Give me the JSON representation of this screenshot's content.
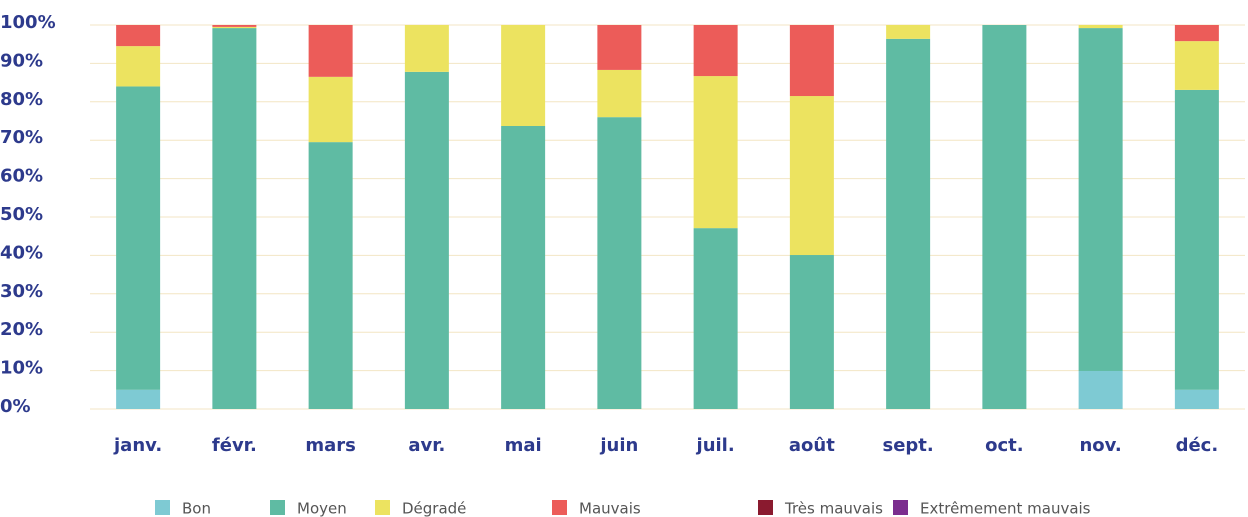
{
  "chart_data": {
    "type": "stacked_bar",
    "categories": [
      "janv.",
      "févr.",
      "mars",
      "avr.",
      "mai",
      "juin",
      "juil.",
      "août",
      "sept.",
      "oct.",
      "nov.",
      "déc."
    ],
    "series": [
      {
        "name": "Bon",
        "color": "#7ecad3",
        "values": [
          5,
          0,
          0,
          0,
          0,
          0,
          0,
          0,
          0,
          0,
          9.9,
          5
        ]
      },
      {
        "name": "Moyen",
        "color": "#5fbba3",
        "values": [
          79,
          99.2,
          69.5,
          87.8,
          73.7,
          76,
          47.1,
          40.1,
          96.4,
          100,
          89.3,
          78.1
        ]
      },
      {
        "name": "Dégradé",
        "color": "#ece360",
        "values": [
          10.5,
          0.3,
          17,
          12.2,
          26.3,
          12.3,
          39.6,
          41.4,
          3.6,
          0,
          0.8,
          12.7
        ]
      },
      {
        "name": "Mauvais",
        "color": "#ec5c59",
        "values": [
          5.5,
          0.5,
          13.5,
          0,
          0,
          11.7,
          13.3,
          18.5,
          0,
          0,
          0,
          4.2
        ]
      },
      {
        "name": "Très mauvais",
        "color": "#8a1a2f",
        "values": [
          0,
          0,
          0,
          0,
          0,
          0,
          0,
          0,
          0,
          0,
          0,
          0
        ]
      },
      {
        "name": "Extrêmement mauvais",
        "color": "#7b2d8e",
        "values": [
          0,
          0,
          0,
          0,
          0,
          0,
          0,
          0,
          0,
          0,
          0,
          0
        ]
      }
    ],
    "ylim": [
      0,
      100
    ],
    "yticks": [
      {
        "value": 0,
        "label": "0%"
      },
      {
        "value": 10,
        "label": "10%"
      },
      {
        "value": 20,
        "label": "20%"
      },
      {
        "value": 30,
        "label": "30%"
      },
      {
        "value": 40,
        "label": "40%"
      },
      {
        "value": 50,
        "label": "50%"
      },
      {
        "value": 60,
        "label": "60%"
      },
      {
        "value": 70,
        "label": "70%"
      },
      {
        "value": 80,
        "label": "80%"
      },
      {
        "value": 90,
        "label": "90%"
      },
      {
        "value": 100,
        "label": "100%"
      }
    ],
    "grid": true,
    "legend": "bottom"
  }
}
